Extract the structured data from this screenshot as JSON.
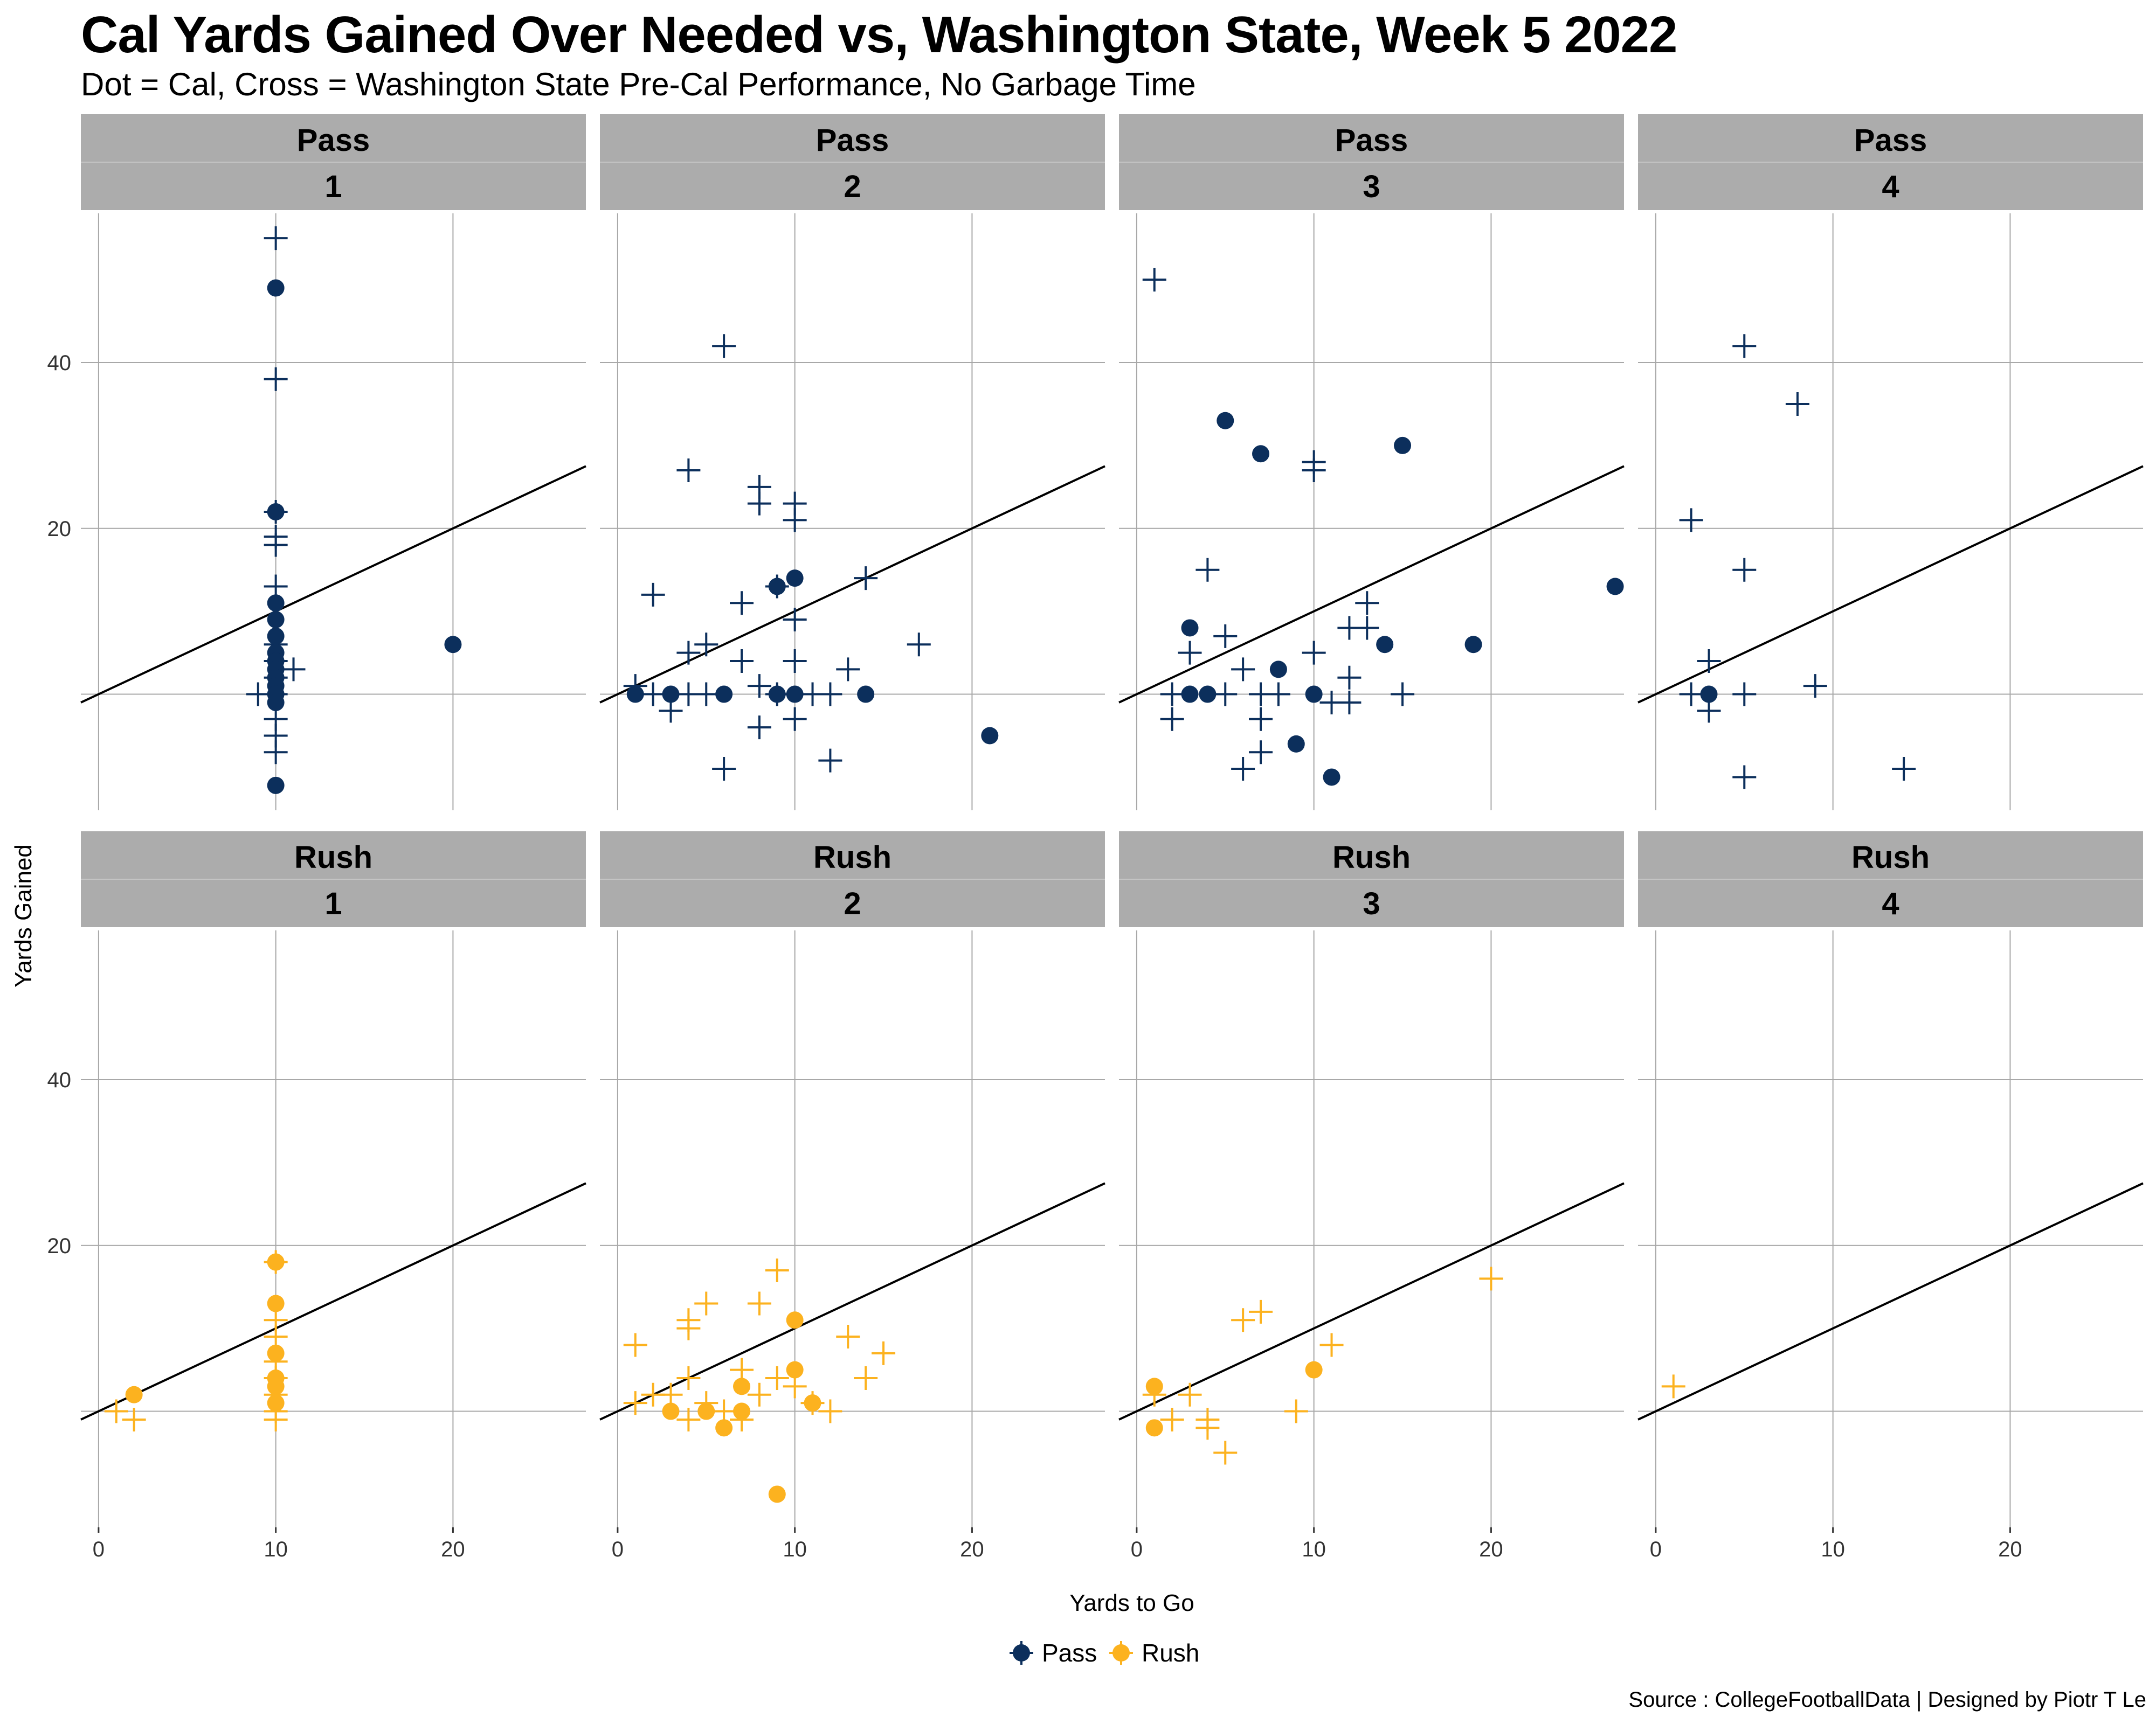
{
  "title": "Cal Yards Gained Over Needed vs, Washington State, Week 5 2022",
  "subtitle": "Dot = Cal, Cross = Washington State Pre-Cal Performance, No Garbage Time",
  "caption": "Source : CollegeFootballData | Designed by Piotr T Le",
  "colors": {
    "Pass": "#0c2f5c",
    "Rush": "#fcb21f",
    "strip": "#acacac",
    "grid": "#a8a8a8"
  },
  "chart_data": {
    "type": "scatter",
    "xlabel": "Yards to Go",
    "ylabel": "Yards Gained",
    "xlim": [
      -1,
      27.5
    ],
    "ylim": [
      -14,
      58
    ],
    "x_ticks": [
      0,
      10,
      20
    ],
    "y_ticks": [
      20,
      40
    ],
    "reference_line": "y = x",
    "facet_rows": [
      "Pass",
      "Rush"
    ],
    "facet_cols": [
      "1",
      "2",
      "3",
      "4"
    ],
    "legend": {
      "position": "bottom",
      "entries": [
        "Pass",
        "Rush"
      ]
    },
    "panels": [
      {
        "play_type": "Pass",
        "down": "1",
        "cal": [
          [
            10,
            49
          ],
          [
            10,
            22
          ],
          [
            10,
            11
          ],
          [
            10,
            9
          ],
          [
            10,
            7
          ],
          [
            10,
            5
          ],
          [
            10,
            4
          ],
          [
            10,
            3
          ],
          [
            10,
            2
          ],
          [
            10,
            1
          ],
          [
            10,
            0
          ],
          [
            10,
            -1
          ],
          [
            10,
            -11
          ],
          [
            20,
            6
          ]
        ],
        "opponent": [
          [
            10,
            55
          ],
          [
            10,
            38
          ],
          [
            10,
            22
          ],
          [
            10,
            19
          ],
          [
            10,
            18
          ],
          [
            10,
            13
          ],
          [
            10,
            6
          ],
          [
            10,
            4
          ],
          [
            10,
            2
          ],
          [
            10,
            0
          ],
          [
            10,
            -3
          ],
          [
            10,
            -5
          ],
          [
            10,
            -7
          ],
          [
            9,
            0
          ],
          [
            11,
            3
          ]
        ]
      },
      {
        "play_type": "Pass",
        "down": "2",
        "cal": [
          [
            1,
            0
          ],
          [
            3,
            0
          ],
          [
            6,
            0
          ],
          [
            9,
            13
          ],
          [
            9,
            0
          ],
          [
            10,
            14
          ],
          [
            10,
            0
          ],
          [
            14,
            0
          ],
          [
            21,
            -5
          ]
        ],
        "opponent": [
          [
            6,
            42
          ],
          [
            4,
            27
          ],
          [
            8,
            25
          ],
          [
            8,
            23
          ],
          [
            10,
            23
          ],
          [
            10,
            21
          ],
          [
            2,
            12
          ],
          [
            7,
            11
          ],
          [
            14,
            14
          ],
          [
            9,
            13
          ],
          [
            17,
            6
          ],
          [
            10,
            9
          ],
          [
            5,
            6
          ],
          [
            4,
            5
          ],
          [
            7,
            4
          ],
          [
            10,
            4
          ],
          [
            13,
            3
          ],
          [
            1,
            1
          ],
          [
            2,
            0
          ],
          [
            4,
            0
          ],
          [
            5,
            0
          ],
          [
            8,
            1
          ],
          [
            9,
            0
          ],
          [
            11,
            0
          ],
          [
            12,
            0
          ],
          [
            3,
            -2
          ],
          [
            10,
            -3
          ],
          [
            8,
            -4
          ],
          [
            12,
            -8
          ],
          [
            6,
            -9
          ]
        ]
      },
      {
        "play_type": "Pass",
        "down": "3",
        "cal": [
          [
            5,
            33
          ],
          [
            7,
            29
          ],
          [
            15,
            30
          ],
          [
            27,
            13
          ],
          [
            3,
            8
          ],
          [
            14,
            6
          ],
          [
            19,
            6
          ],
          [
            8,
            3
          ],
          [
            3,
            0
          ],
          [
            4,
            0
          ],
          [
            10,
            0
          ],
          [
            9,
            -6
          ],
          [
            11,
            -10
          ]
        ],
        "opponent": [
          [
            1,
            50
          ],
          [
            10,
            28
          ],
          [
            10,
            27
          ],
          [
            4,
            15
          ],
          [
            13,
            11
          ],
          [
            12,
            8
          ],
          [
            13,
            8
          ],
          [
            5,
            7
          ],
          [
            3,
            5
          ],
          [
            10,
            5
          ],
          [
            6,
            3
          ],
          [
            12,
            2
          ],
          [
            2,
            0
          ],
          [
            5,
            0
          ],
          [
            7,
            0
          ],
          [
            8,
            0
          ],
          [
            11,
            -1
          ],
          [
            12,
            -1
          ],
          [
            15,
            0
          ],
          [
            2,
            -3
          ],
          [
            7,
            -3
          ],
          [
            7,
            -7
          ],
          [
            6,
            -9
          ]
        ]
      },
      {
        "play_type": "Pass",
        "down": "4",
        "cal": [
          [
            3,
            0
          ]
        ],
        "opponent": [
          [
            5,
            42
          ],
          [
            8,
            35
          ],
          [
            2,
            21
          ],
          [
            5,
            15
          ],
          [
            3,
            4
          ],
          [
            9,
            1
          ],
          [
            2,
            0
          ],
          [
            5,
            0
          ],
          [
            3,
            -2
          ],
          [
            5,
            -10
          ],
          [
            14,
            -9
          ]
        ]
      },
      {
        "play_type": "Rush",
        "down": "1",
        "cal": [
          [
            2,
            2
          ],
          [
            10,
            18
          ],
          [
            10,
            13
          ],
          [
            10,
            7
          ],
          [
            10,
            4
          ],
          [
            10,
            3
          ],
          [
            10,
            1
          ]
        ],
        "opponent": [
          [
            10,
            18
          ],
          [
            10,
            11
          ],
          [
            10,
            9
          ],
          [
            10,
            6
          ],
          [
            10,
            4
          ],
          [
            10,
            2
          ],
          [
            10,
            0
          ],
          [
            10,
            -1
          ],
          [
            1,
            0
          ],
          [
            2,
            -1
          ]
        ]
      },
      {
        "play_type": "Rush",
        "down": "2",
        "cal": [
          [
            10,
            11
          ],
          [
            10,
            5
          ],
          [
            7,
            3
          ],
          [
            11,
            1
          ],
          [
            3,
            0
          ],
          [
            5,
            0
          ],
          [
            7,
            0
          ],
          [
            6,
            -2
          ],
          [
            9,
            -10
          ]
        ],
        "opponent": [
          [
            9,
            17
          ],
          [
            5,
            13
          ],
          [
            8,
            13
          ],
          [
            4,
            11
          ],
          [
            4,
            10
          ],
          [
            13,
            9
          ],
          [
            1,
            8
          ],
          [
            15,
            7
          ],
          [
            7,
            5
          ],
          [
            14,
            4
          ],
          [
            9,
            4
          ],
          [
            4,
            4
          ],
          [
            10,
            3
          ],
          [
            2,
            2
          ],
          [
            3,
            2
          ],
          [
            8,
            2
          ],
          [
            11,
            1
          ],
          [
            1,
            1
          ],
          [
            5,
            1
          ],
          [
            6,
            0
          ],
          [
            12,
            0
          ],
          [
            4,
            -1
          ],
          [
            7,
            -1
          ]
        ]
      },
      {
        "play_type": "Rush",
        "down": "3",
        "cal": [
          [
            1,
            3
          ],
          [
            10,
            5
          ],
          [
            1,
            -2
          ]
        ],
        "opponent": [
          [
            20,
            16
          ],
          [
            7,
            12
          ],
          [
            6,
            11
          ],
          [
            11,
            8
          ],
          [
            1,
            2
          ],
          [
            3,
            2
          ],
          [
            4,
            -1
          ],
          [
            2,
            -1
          ],
          [
            4,
            -2
          ],
          [
            9,
            0
          ],
          [
            5,
            -5
          ]
        ]
      },
      {
        "play_type": "Rush",
        "down": "4",
        "cal": [],
        "opponent": [
          [
            1,
            3
          ]
        ]
      }
    ]
  }
}
